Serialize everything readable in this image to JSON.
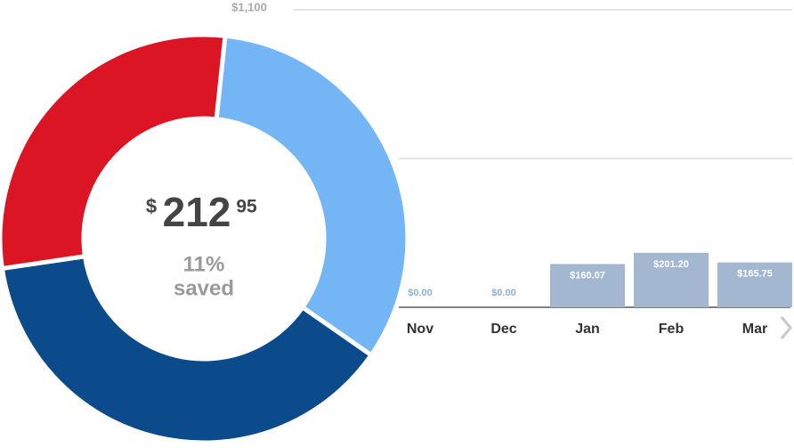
{
  "chart_data": [
    {
      "type": "donut",
      "values": [
        33,
        38,
        29
      ],
      "colors": [
        "#74b6f5",
        "#0b4a8b",
        "#dc1525"
      ],
      "center_amount": {
        "symbol": "$",
        "dollars": "212",
        "cents": "95"
      },
      "center_percent": "11%",
      "center_caption": "saved"
    },
    {
      "type": "bar",
      "categories": [
        "Nov",
        "Dec",
        "Jan",
        "Feb",
        "Mar"
      ],
      "values": [
        0,
        0,
        160.07,
        201.2,
        165.75
      ],
      "value_labels": [
        "$0.00",
        "$0.00",
        "$160.07",
        "$201.20",
        "$165.75"
      ],
      "color": "#a3b8d0",
      "ylim": [
        0,
        1100
      ],
      "yticks": [
        {
          "value": 550,
          "label": null
        },
        {
          "value": 1100,
          "label": "$1,100"
        }
      ],
      "grid": true
    }
  ]
}
